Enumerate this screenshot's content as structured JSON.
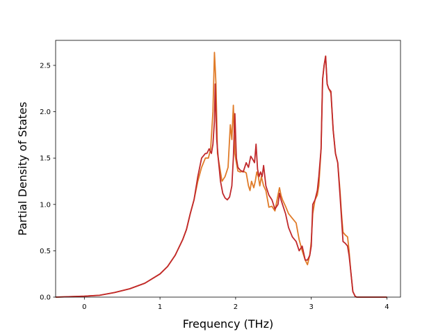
{
  "chart_data": {
    "type": "line",
    "title": "",
    "xlabel": "Frequency (THz)",
    "ylabel": "Partial Density of States",
    "xlim": [
      -0.38,
      4.18
    ],
    "ylim": [
      0,
      2.77
    ],
    "xticks": [
      0,
      1,
      2,
      3,
      4
    ],
    "xtick_labels": [
      "0",
      "1",
      "2",
      "3",
      "4"
    ],
    "yticks": [
      0,
      0.5,
      1.0,
      1.5,
      2.0,
      2.5
    ],
    "ytick_labels": [
      "0.0",
      "0.5",
      "1.0",
      "1.5",
      "2.0",
      "2.5"
    ],
    "grid": false,
    "series": [
      {
        "color": "#e07b28",
        "x": [
          -0.38,
          0,
          0.2,
          0.4,
          0.6,
          0.8,
          1.0,
          1.1,
          1.2,
          1.3,
          1.35,
          1.4,
          1.45,
          1.5,
          1.55,
          1.6,
          1.64,
          1.67,
          1.7,
          1.72,
          1.74,
          1.76,
          1.78,
          1.82,
          1.86,
          1.9,
          1.93,
          1.95,
          1.97,
          1.99,
          2.01,
          2.03,
          2.06,
          2.1,
          2.14,
          2.17,
          2.19,
          2.21,
          2.24,
          2.26,
          2.28,
          2.3,
          2.32,
          2.34,
          2.37,
          2.4,
          2.44,
          2.48,
          2.52,
          2.56,
          2.58,
          2.6,
          2.62,
          2.66,
          2.7,
          2.75,
          2.8,
          2.84,
          2.88,
          2.92,
          2.95,
          2.98,
          3.0,
          3.02,
          3.05,
          3.08,
          3.1,
          3.13,
          3.15,
          3.17,
          3.19,
          3.21,
          3.23,
          3.26,
          3.29,
          3.32,
          3.35,
          3.38,
          3.4,
          3.42,
          3.45,
          3.48,
          3.5,
          3.52,
          3.55,
          3.58,
          3.6,
          3.62,
          3.65,
          3.7,
          4.0
        ],
        "y": [
          0,
          0.01,
          0.02,
          0.05,
          0.09,
          0.15,
          0.25,
          0.33,
          0.45,
          0.62,
          0.73,
          0.9,
          1.05,
          1.25,
          1.4,
          1.5,
          1.5,
          1.6,
          2.0,
          2.64,
          2.3,
          1.55,
          1.45,
          1.25,
          1.3,
          1.4,
          1.86,
          1.7,
          2.07,
          1.55,
          1.45,
          1.36,
          1.35,
          1.36,
          1.34,
          1.2,
          1.15,
          1.25,
          1.18,
          1.25,
          1.35,
          1.3,
          1.2,
          1.3,
          1.2,
          1.15,
          0.97,
          0.98,
          0.93,
          1.1,
          1.18,
          1.1,
          1.05,
          0.98,
          0.9,
          0.85,
          0.8,
          0.62,
          0.5,
          0.4,
          0.35,
          0.45,
          0.6,
          0.9,
          1.05,
          1.1,
          1.2,
          1.6,
          2.35,
          2.5,
          2.6,
          2.3,
          2.25,
          2.2,
          1.8,
          1.55,
          1.45,
          1.15,
          0.9,
          0.7,
          0.67,
          0.65,
          0.5,
          0.3,
          0.06,
          0.01,
          0,
          0,
          0,
          0,
          0
        ]
      },
      {
        "color": "#c0282b",
        "x": [
          -0.38,
          0,
          0.2,
          0.4,
          0.6,
          0.8,
          1.0,
          1.1,
          1.2,
          1.3,
          1.35,
          1.4,
          1.45,
          1.5,
          1.55,
          1.6,
          1.62,
          1.65,
          1.68,
          1.7,
          1.72,
          1.73,
          1.75,
          1.77,
          1.8,
          1.83,
          1.86,
          1.89,
          1.92,
          1.95,
          1.97,
          1.99,
          2.01,
          2.03,
          2.06,
          2.1,
          2.14,
          2.17,
          2.2,
          2.23,
          2.25,
          2.27,
          2.29,
          2.31,
          2.33,
          2.35,
          2.37,
          2.4,
          2.44,
          2.48,
          2.52,
          2.56,
          2.58,
          2.6,
          2.62,
          2.66,
          2.7,
          2.75,
          2.8,
          2.84,
          2.88,
          2.92,
          2.95,
          2.98,
          3.0,
          3.02,
          3.05,
          3.08,
          3.1,
          3.13,
          3.15,
          3.17,
          3.19,
          3.21,
          3.23,
          3.26,
          3.29,
          3.32,
          3.35,
          3.38,
          3.4,
          3.42,
          3.45,
          3.48,
          3.5,
          3.52,
          3.55,
          3.58,
          3.6,
          3.62,
          3.65,
          3.7,
          4.0
        ],
        "y": [
          0,
          0.01,
          0.02,
          0.05,
          0.09,
          0.15,
          0.25,
          0.33,
          0.45,
          0.62,
          0.73,
          0.9,
          1.05,
          1.3,
          1.5,
          1.55,
          1.55,
          1.6,
          1.55,
          1.65,
          1.9,
          2.3,
          1.7,
          1.5,
          1.25,
          1.12,
          1.07,
          1.05,
          1.08,
          1.2,
          1.5,
          1.98,
          1.5,
          1.4,
          1.37,
          1.35,
          1.45,
          1.4,
          1.52,
          1.48,
          1.45,
          1.65,
          1.38,
          1.3,
          1.35,
          1.3,
          1.42,
          1.2,
          1.1,
          1.05,
          0.95,
          1.0,
          1.12,
          1.05,
          1.0,
          0.9,
          0.75,
          0.65,
          0.6,
          0.5,
          0.55,
          0.4,
          0.4,
          0.45,
          0.55,
          1.0,
          1.05,
          1.15,
          1.3,
          1.6,
          2.35,
          2.5,
          2.6,
          2.3,
          2.25,
          2.22,
          1.8,
          1.55,
          1.45,
          1.1,
          0.85,
          0.6,
          0.58,
          0.55,
          0.45,
          0.3,
          0.06,
          0.01,
          0,
          0,
          0,
          0,
          0
        ]
      }
    ]
  }
}
